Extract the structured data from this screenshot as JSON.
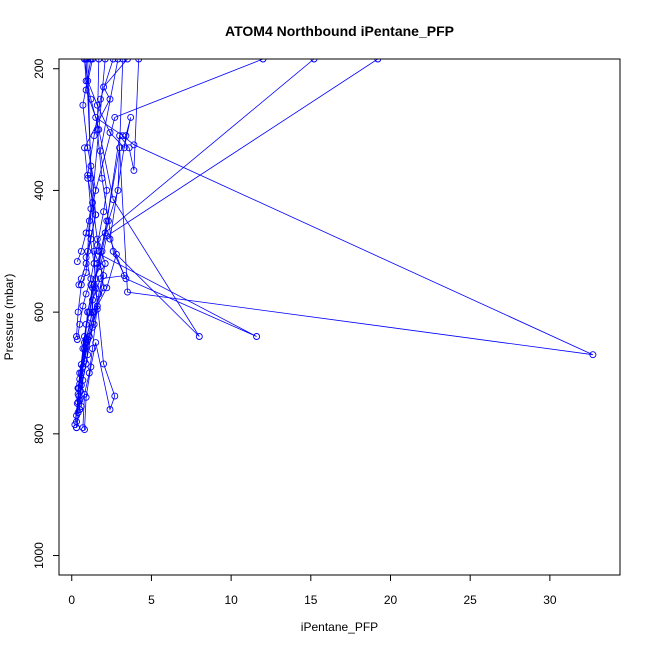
{
  "chart_data": {
    "type": "line",
    "title": "ATOM4 Northbound iPentane_PFP",
    "xlabel": "iPentane_PFP",
    "ylabel": "Pressure (mbar)",
    "xlim": [
      -0.8,
      34.4
    ],
    "ylim": [
      1032,
      184
    ],
    "y_reversed": true,
    "x_ticks": [
      0,
      5,
      10,
      15,
      20,
      25,
      30
    ],
    "x_tick_labels": [
      "0",
      "5",
      "10",
      "15",
      "20",
      "25",
      "30"
    ],
    "y_ticks": [
      200,
      400,
      600,
      800,
      1000
    ],
    "y_tick_labels": [
      "200",
      "400",
      "600",
      "800",
      "1000"
    ],
    "grid": false,
    "legend": "none",
    "colors": {
      "series": "#0000ff",
      "axis": "#000000"
    },
    "series": [
      {
        "x": [
          0.3,
          0.5,
          0.4,
          0.6,
          0.8,
          1.1,
          1.4,
          1.9,
          2.3,
          2.9,
          3.2
        ],
        "y": [
          790,
          760,
          725,
          686,
          640,
          600,
          555,
          500,
          450,
          400,
          184
        ]
      },
      {
        "x": [
          0.2,
          0.35,
          0.5,
          0.7,
          0.9,
          1.3,
          1.8,
          3.3,
          2.4,
          3.4,
          3.7,
          3.3,
          2.4,
          1.6,
          1.0,
          0.8
        ],
        "y": [
          785,
          750,
          710,
          660,
          620,
          580,
          545,
          540,
          480,
          310,
          280,
          330,
          305,
          260,
          220,
          184
        ]
      },
      {
        "x": [
          0.3,
          0.45,
          0.4,
          0.7,
          0.9,
          1.2,
          1.6,
          2.1,
          3.0,
          3.6,
          3.9,
          4.2
        ],
        "y": [
          780,
          738,
          725,
          690,
          650,
          610,
          520,
          470,
          310,
          330,
          367,
          184
        ]
      },
      {
        "x": [
          0.3,
          0.4,
          0.5,
          0.8,
          1.0,
          1.5,
          2.2,
          3.0,
          3.5,
          32.7,
          3.9,
          3.2,
          1.5,
          0.9,
          1.3
        ],
        "y": [
          770,
          735,
          700,
          660,
          600,
          545,
          450,
          330,
          567,
          670,
          325,
          310,
          280,
          235,
          184
        ]
      },
      {
        "x": [
          0.4,
          0.55,
          0.7,
          1.0,
          1.4,
          2.2,
          2.8,
          8.0,
          2.6,
          1.7,
          1.2,
          0.9,
          0.8
        ],
        "y": [
          765,
          730,
          690,
          645,
          600,
          560,
          505,
          640,
          415,
          300,
          250,
          220,
          184
        ]
      },
      {
        "x": [
          0.5,
          0.6,
          0.9,
          1.1,
          1.6,
          2.0,
          1.4,
          11.6,
          3.4,
          2.6,
          1.9,
          1.6,
          1.7
        ],
        "y": [
          760,
          720,
          685,
          640,
          595,
          540,
          500,
          640,
          545,
          500,
          380,
          300,
          184
        ]
      },
      {
        "x": [
          0.6,
          0.7,
          1.0,
          1.3,
          1.7,
          2.1,
          1.6,
          15.2
        ],
        "y": [
          755,
          712,
          670,
          625,
          570,
          520,
          480,
          184
        ]
      },
      {
        "x": [
          0.8,
          0.9,
          1.2,
          1.5,
          2.4,
          2.7,
          2.0,
          1.5,
          1.2,
          1.0
        ],
        "y": [
          793,
          740,
          690,
          650,
          760,
          738,
          685,
          560,
          380,
          184
        ]
      },
      {
        "x": [
          0.5,
          0.6,
          0.9,
          1.3,
          2.0,
          1.7,
          1.3,
          2.7,
          12.0
        ],
        "y": [
          745,
          700,
          645,
          600,
          560,
          500,
          420,
          280,
          184
        ]
      },
      {
        "x": [
          0.4,
          0.5,
          0.8,
          1.1,
          1.4,
          1.2,
          1.8,
          2.2,
          19.2
        ],
        "y": [
          748,
          718,
          680,
          640,
          620,
          555,
          525,
          475,
          184
        ]
      },
      {
        "x": [
          0.3,
          0.4,
          0.6,
          0.9,
          1.0,
          1.1,
          1.5,
          1.0,
          0.7,
          1.2
        ],
        "y": [
          640,
          600,
          555,
          535,
          500,
          450,
          400,
          330,
          260,
          184
        ]
      },
      {
        "x": [
          0.35,
          0.5,
          0.7,
          0.9,
          1.2,
          1.6,
          2.0,
          2.2,
          1.8,
          2.9
        ],
        "y": [
          645,
          620,
          590,
          570,
          545,
          490,
          435,
          400,
          335,
          184
        ]
      },
      {
        "x": [
          0.45,
          0.6,
          0.9,
          1.2,
          1.5,
          1.0,
          0.8,
          2.4,
          2.0,
          3.5
        ],
        "y": [
          555,
          545,
          520,
          480,
          440,
          380,
          330,
          250,
          230,
          184
        ]
      },
      {
        "x": [
          0.35,
          0.6,
          0.9,
          1.2,
          1.0,
          1.4,
          1.8,
          2.6
        ],
        "y": [
          517,
          500,
          470,
          430,
          375,
          310,
          250,
          184
        ]
      },
      {
        "x": [
          0.7,
          0.8,
          1.1,
          1.3,
          1.6,
          1.4,
          1.1,
          2.1
        ],
        "y": [
          790,
          735,
          700,
          660,
          590,
          520,
          470,
          184
        ]
      },
      {
        "x": [
          0.3,
          0.45,
          0.8,
          1.0,
          1.3,
          0.9,
          1.5,
          1.2,
          0.9
        ],
        "y": [
          790,
          725,
          650,
          600,
          560,
          510,
          440,
          360,
          184
        ]
      }
    ]
  }
}
